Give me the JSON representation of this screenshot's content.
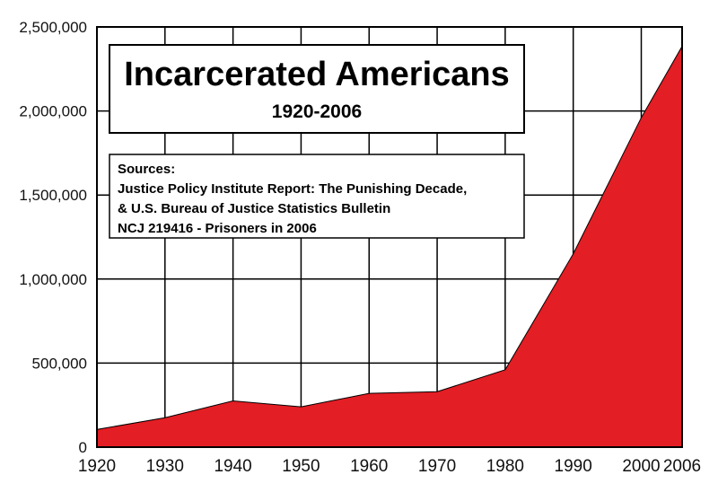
{
  "chart_data": {
    "type": "area",
    "title": "Incarcerated Americans",
    "subtitle": "1920-2006",
    "sources": [
      "Sources:",
      "Justice Policy Institute Report: The Punishing Decade,",
      "& U.S. Bureau of Justice Statistics Bulletin",
      "NCJ 219416 - Prisoners in 2006"
    ],
    "x": [
      1920,
      1930,
      1940,
      1950,
      1960,
      1970,
      1980,
      1990,
      2000,
      2006
    ],
    "x_tick_labels": [
      "1920",
      "1930",
      "1940",
      "1950",
      "1960",
      "1970",
      "1980",
      "1990",
      "2000",
      "2006"
    ],
    "y": [
      105000,
      175000,
      275000,
      240000,
      320000,
      330000,
      460000,
      1150000,
      1960000,
      2385000
    ],
    "y_ticks": [
      0,
      500000,
      1000000,
      1500000,
      2000000,
      2500000
    ],
    "y_tick_labels": [
      "0",
      "500,000",
      "1,000,000",
      "1,500,000",
      "2,000,000",
      "2,500,000"
    ],
    "ylim": [
      0,
      2500000
    ],
    "xlabel": "",
    "ylabel": "",
    "grid": true,
    "fill_color": "#e31e24",
    "line_color": "#000000",
    "background_color": "#ffffff"
  }
}
